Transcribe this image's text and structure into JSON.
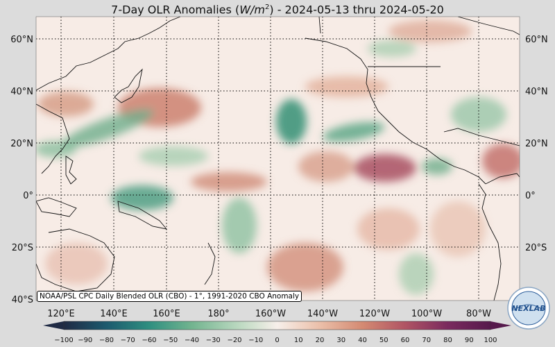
{
  "title": {
    "prefix": "7-Day OLR Anomalies (",
    "unit_main": "W/m",
    "unit_exp": "2",
    "suffix": ") - 2024-05-13 thru 2024-05-20"
  },
  "map": {
    "lat_labels": [
      "60°N",
      "40°N",
      "20°N",
      "0°",
      "20°S",
      "40°S"
    ],
    "lon_labels": [
      "120°E",
      "140°E",
      "160°E",
      "180°",
      "160°W",
      "140°W",
      "120°W",
      "100°W",
      "80°W"
    ],
    "grid": "dotted"
  },
  "source_note": "NOAA/PSL CPC Daily Blended OLR (CBO) - 1°, 1991-2020 CBO Anomaly",
  "colorbar": {
    "tick_labels": [
      "−100",
      "−90",
      "−80",
      "−70",
      "−60",
      "−50",
      "−40",
      "−30",
      "−20",
      "−10",
      "0",
      "10",
      "20",
      "30",
      "40",
      "50",
      "60",
      "70",
      "80",
      "90",
      "100"
    ],
    "colors": [
      "#1f2a44",
      "#1d3b5a",
      "#1c5a6e",
      "#1f7a7a",
      "#2f8f80",
      "#4ea185",
      "#72b48f",
      "#9bc8a5",
      "#c2dcc5",
      "#e6efe6",
      "#f7efea",
      "#f3d9cc",
      "#ebbfa9",
      "#e0a487",
      "#d48a72",
      "#c46f68",
      "#b05464",
      "#963c63",
      "#7a2a5e",
      "#561a4c"
    ]
  },
  "logo": {
    "text": "NEXLAB"
  },
  "colors": {
    "background": "#dcdcdc",
    "ocean_base": "#f7ece6"
  }
}
